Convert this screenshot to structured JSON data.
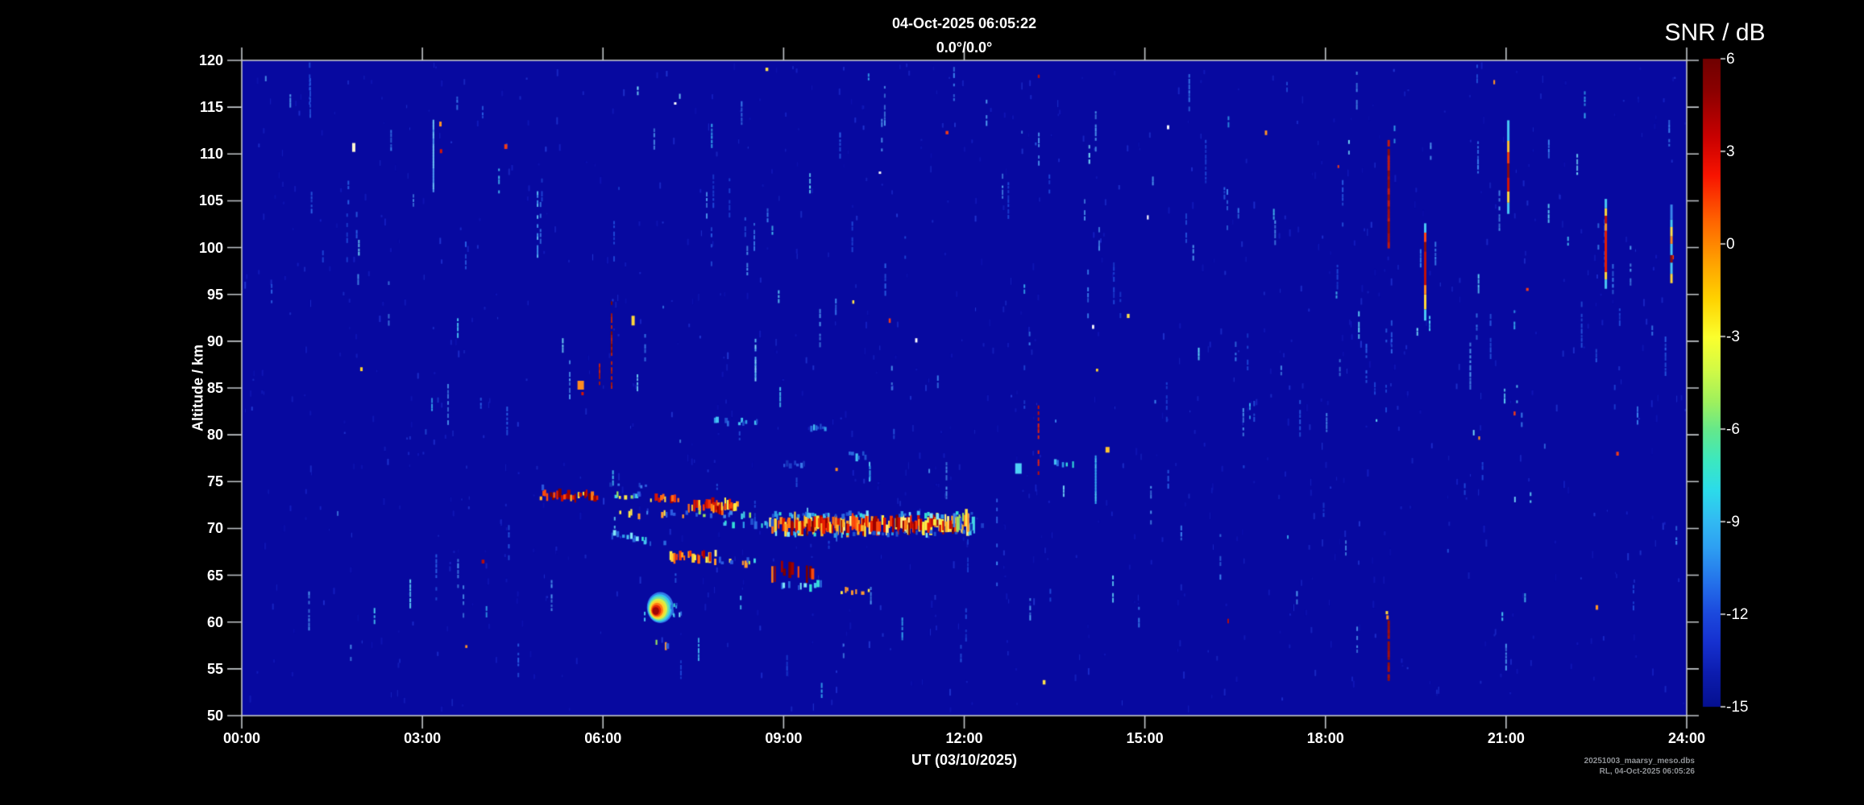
{
  "chart_data": {
    "type": "heatmap",
    "title": "04-Oct-2025 06:05:22",
    "subtitle": "0.0°/0.0°",
    "xlabel": "UT (03/10/2025)",
    "ylabel": "Altitude / km",
    "colorbar_title": "SNR / dB",
    "x_range_hours": [
      0,
      24
    ],
    "y_range_km": [
      50,
      120
    ],
    "colorbar_range_db": [
      -15,
      6
    ],
    "x_ticks": [
      {
        "value": 0,
        "label": "00:00"
      },
      {
        "value": 3,
        "label": "03:00"
      },
      {
        "value": 6,
        "label": "06:00"
      },
      {
        "value": 9,
        "label": "09:00"
      },
      {
        "value": 12,
        "label": "12:00"
      },
      {
        "value": 15,
        "label": "15:00"
      },
      {
        "value": 18,
        "label": "18:00"
      },
      {
        "value": 21,
        "label": "21:00"
      },
      {
        "value": 24,
        "label": "24:00"
      }
    ],
    "y_ticks": [
      {
        "value": 120,
        "label": "120"
      },
      {
        "value": 115,
        "label": "115"
      },
      {
        "value": 110,
        "label": "110"
      },
      {
        "value": 105,
        "label": "105"
      },
      {
        "value": 100,
        "label": "100"
      },
      {
        "value": 95,
        "label": "95"
      },
      {
        "value": 90,
        "label": "90"
      },
      {
        "value": 85,
        "label": "85"
      },
      {
        "value": 80,
        "label": "80"
      },
      {
        "value": 75,
        "label": "75"
      },
      {
        "value": 70,
        "label": "70"
      },
      {
        "value": 65,
        "label": "65"
      },
      {
        "value": 60,
        "label": "60"
      },
      {
        "value": 55,
        "label": "55"
      },
      {
        "value": 50,
        "label": "50"
      }
    ],
    "colorbar_ticks": [
      {
        "value": 6,
        "label": "6"
      },
      {
        "value": 3,
        "label": "3"
      },
      {
        "value": 0,
        "label": "0"
      },
      {
        "value": -3,
        "label": "-3"
      },
      {
        "value": -6,
        "label": "-6"
      },
      {
        "value": -9,
        "label": "-9"
      },
      {
        "value": -12,
        "label": "-12"
      },
      {
        "value": -15,
        "label": "-15"
      }
    ],
    "legend_position": "right",
    "grid": false,
    "colors": {
      "plot_background": "#0709a0",
      "frame": "#c3c7cb",
      "text": "#ffffff",
      "footer_text": "#8f9296",
      "colormap_stops": [
        [
          0,
          "#700000"
        ],
        [
          0.05,
          "#8c0000"
        ],
        [
          0.12,
          "#c80000"
        ],
        [
          0.18,
          "#f81400"
        ],
        [
          0.25,
          "#ff6400"
        ],
        [
          0.31,
          "#ff9e00"
        ],
        [
          0.37,
          "#ffd200"
        ],
        [
          0.43,
          "#fbff2e"
        ],
        [
          0.48,
          "#d2fa46"
        ],
        [
          0.53,
          "#9ef05e"
        ],
        [
          0.575,
          "#62e88e"
        ],
        [
          0.62,
          "#3ce8c0"
        ],
        [
          0.665,
          "#2cdcea"
        ],
        [
          0.71,
          "#32bcf2"
        ],
        [
          0.755,
          "#2e9ff2"
        ],
        [
          0.81,
          "#2470ea"
        ],
        [
          0.855,
          "#1c4ade"
        ],
        [
          0.9,
          "#1631d0"
        ],
        [
          0.95,
          "#0c1cae"
        ],
        [
          1,
          "#051090"
        ]
      ]
    },
    "palettes": {
      "hot1": [
        "#ffef4a",
        "#ffd23a",
        "#ff9d26",
        "#ff6a14",
        "#f93608",
        "#d81600",
        "#aa0000",
        "#ffef80"
      ],
      "hot2": [
        "#e81e00",
        "#c40b00",
        "#9c0000",
        "#ff7a16",
        "#ffb428",
        "#ffe83e",
        "#7a0000",
        "#f94a0c"
      ],
      "mixc": [
        "#ffe84a",
        "#9ae060",
        "#44d4e8",
        "#3f86ec",
        "#2a5ae0",
        "#ff9a30"
      ],
      "cy": [
        "#2f9ae8",
        "#45c2f2",
        "#7fe6fa",
        "#2a6ae0",
        "#1f50d0",
        "#35e0d8"
      ],
      "bl": [
        "#1d3cc8",
        "#2a56dc",
        "#3a78e8",
        "#1530b8"
      ]
    },
    "noise": {
      "seed": 7,
      "faint": {
        "n": 950,
        "colors": [
          "#1016b4",
          "#1520c0",
          "#1c2cca",
          "#2238d2"
        ]
      },
      "medium": {
        "n": 165,
        "colors": [
          "#1e48d8",
          "#2a62e6",
          "#3c86f0",
          "#4f9cf0"
        ]
      },
      "bright": {
        "n": 55,
        "colors": [
          "#49c8f4",
          "#7ae4fb",
          "#35a8ee",
          "#62d8f8"
        ]
      },
      "hot": {
        "n": 26,
        "colors": [
          "#ffffff",
          "#ffe24a",
          "#ff9326",
          "#f23c16",
          "#b40d0d",
          "#ffd22e"
        ]
      }
    },
    "features": [
      {
        "kind": "band",
        "t0": 4.75,
        "t1": 5.1,
        "alt": 74.5,
        "h": 0.45,
        "pal": "bl",
        "d": 0.35
      },
      {
        "kind": "band",
        "t0": 4.95,
        "t1": 5.88,
        "alt": 73.5,
        "h": 0.7,
        "pal": "hot2",
        "d": 0.9
      },
      {
        "kind": "band",
        "t0": 6.08,
        "t1": 6.56,
        "alt": 73.5,
        "h": 0.55,
        "pal": "mixc",
        "d": 0.6
      },
      {
        "kind": "band",
        "t0": 6.75,
        "t1": 7.22,
        "alt": 73.2,
        "h": 0.6,
        "pal": "hot1",
        "d": 0.8
      },
      {
        "kind": "band",
        "t0": 7.42,
        "t1": 8.2,
        "alt": 72.3,
        "h": 1.0,
        "pal": "hot1",
        "d": 0.95
      },
      {
        "kind": "band",
        "t0": 7.78,
        "t1": 8.16,
        "alt": 72.3,
        "h": 0.8,
        "pal": "hot2",
        "d": 0.8
      },
      {
        "kind": "band",
        "t0": 6.2,
        "t1": 8.45,
        "alt": 71.5,
        "h": 0.5,
        "pal": "mixc",
        "d": 0.33
      },
      {
        "kind": "band",
        "t0": 8.75,
        "t1": 12.02,
        "alt": 70.35,
        "h": 1.25,
        "pal": "hot1",
        "d": 0.97
      },
      {
        "kind": "band",
        "t0": 9.0,
        "t1": 10.55,
        "alt": 70.35,
        "h": 1.1,
        "pal": "hot2",
        "d": 0.85
      },
      {
        "kind": "band",
        "t0": 10.85,
        "t1": 11.95,
        "alt": 70.35,
        "h": 1.1,
        "pal": "hot2",
        "d": 0.85
      },
      {
        "kind": "band",
        "t0": 7.95,
        "t1": 8.78,
        "alt": 70.5,
        "h": 0.6,
        "pal": "cy",
        "d": 0.55
      },
      {
        "kind": "band",
        "t0": 8.7,
        "t1": 12.1,
        "alt": 71.45,
        "h": 0.45,
        "pal": "cy",
        "d": 0.4
      },
      {
        "kind": "band",
        "t0": 8.7,
        "t1": 12.15,
        "alt": 69.45,
        "h": 0.45,
        "pal": "cy",
        "d": 0.35
      },
      {
        "kind": "band",
        "t0": 11.82,
        "t1": 12.12,
        "alt": 70.6,
        "h": 1.4,
        "pal": "mixc",
        "d": 0.9
      },
      {
        "kind": "band",
        "t0": 6.1,
        "t1": 7.12,
        "alt0": 69.4,
        "alt1": 68.1,
        "h": 0.55,
        "pal": "cy",
        "d": 0.5
      },
      {
        "kind": "band",
        "t0": 7.1,
        "t1": 7.85,
        "alt": 67.0,
        "h": 0.8,
        "pal": "hot1",
        "d": 0.75
      },
      {
        "kind": "band",
        "t0": 7.85,
        "t1": 8.5,
        "alt": 66.4,
        "h": 0.55,
        "pal": "mixc",
        "d": 0.5
      },
      {
        "kind": "band",
        "t0": 8.8,
        "t1": 9.65,
        "alt": 65.6,
        "h": 1.3,
        "pal": "hot2",
        "d": 0.5
      },
      {
        "kind": "band",
        "t0": 8.8,
        "t1": 9.65,
        "alt": 63.9,
        "h": 0.6,
        "pal": "cy",
        "d": 0.4
      },
      {
        "kind": "band",
        "t0": 9.9,
        "t1": 10.5,
        "alt": 63.3,
        "h": 0.5,
        "pal": "mixc",
        "d": 0.5
      },
      {
        "kind": "band",
        "t0": 6.04,
        "t1": 6.7,
        "alt": 74.6,
        "h": 0.45,
        "pal": "bl",
        "d": 0.4
      },
      {
        "kind": "band",
        "t0": 7.76,
        "t1": 8.55,
        "alt": 81.4,
        "h": 0.5,
        "pal": "cy",
        "d": 0.45
      },
      {
        "kind": "band",
        "t0": 9.45,
        "t1": 9.66,
        "alt": 80.7,
        "h": 0.5,
        "pal": "cy",
        "d": 0.7
      },
      {
        "kind": "band",
        "t0": 13.5,
        "t1": 13.9,
        "alt": 77.0,
        "h": 0.5,
        "pal": "cy",
        "d": 0.55
      },
      {
        "kind": "band",
        "t0": 9.0,
        "t1": 9.32,
        "alt": 76.8,
        "h": 0.5,
        "pal": "bl",
        "d": 0.6
      },
      {
        "kind": "band",
        "t0": 10.08,
        "t1": 10.35,
        "alt": 77.8,
        "h": 0.6,
        "pal": "cy",
        "d": 0.7
      },
      {
        "kind": "band",
        "t0": 6.86,
        "t1": 7.1,
        "alt": 57.6,
        "h": 0.7,
        "pal": "mixc",
        "d": 0.55
      },
      {
        "kind": "band",
        "t0": 12.1,
        "t1": 12.4,
        "alt": 70.3,
        "h": 0.5,
        "pal": "bl",
        "d": 0.3
      },
      {
        "kind": "blob",
        "t0": 6.74,
        "t1": 7.16,
        "a0": 59.9,
        "a1": 63.2
      },
      {
        "kind": "v",
        "t": 6.68,
        "a0": 59.2,
        "a1": 61.3,
        "pal": [
          "#45c2f2",
          "#2f9ae8"
        ],
        "d": 0.6
      },
      {
        "kind": "v",
        "t": 6.13,
        "a0": 85.0,
        "a1": 94.0,
        "pal": [
          "#9c1616",
          "#b32014",
          "#7a0c0c"
        ],
        "d": 0.6
      },
      {
        "kind": "v",
        "t": 5.93,
        "a0": 85.4,
        "a1": 87.4,
        "pal": [
          "#9c1616",
          "#c22014"
        ],
        "d": 0.8
      },
      {
        "kind": "v",
        "t": 8.52,
        "a0": 85.8,
        "a1": 90.2,
        "pal": [
          "#57b6f2",
          "#7fd8f8"
        ],
        "d": 0.9
      },
      {
        "kind": "v",
        "t": 3.17,
        "a0": 106.0,
        "a1": 113.5,
        "pal": [
          "#4f9cf0",
          "#6cc4f6"
        ],
        "d": 0.85
      },
      {
        "kind": "v",
        "t": 4.9,
        "a0": 99.0,
        "a1": 106.0,
        "pal": [
          "#3a86ea",
          "#57b6f2"
        ],
        "d": 0.5
      },
      {
        "kind": "v",
        "t": 19.03,
        "a0": 100.0,
        "a1": 111.2,
        "pal": [
          "#a31111",
          "#8c0d0d",
          "#c01c10"
        ],
        "d": 0.97,
        "w": 3
      },
      {
        "kind": "v",
        "t": 19.03,
        "a0": 53.8,
        "a1": 60.0,
        "pal": [
          "#a31111",
          "#911010"
        ],
        "d": 0.93,
        "w": 3
      },
      {
        "kind": "spot",
        "t": 19.03,
        "alt": 60.5,
        "c": "#ff9326",
        "w": 3,
        "h": 5
      },
      {
        "kind": "spot",
        "t": 19.02,
        "alt": 61.0,
        "c": "#ffd83a",
        "w": 3,
        "h": 4
      },
      {
        "kind": "v",
        "t": 19.65,
        "segs": [
          [
            92.2,
            93.4,
            "#49c8f4"
          ],
          [
            93.4,
            95.0,
            "#ffd83a"
          ],
          [
            95.0,
            96.0,
            "#ff8c1e"
          ],
          [
            96.0,
            99.6,
            "#c21208"
          ],
          [
            99.6,
            100.6,
            "#8c0d0d"
          ],
          [
            100.6,
            101.6,
            "#ff4612"
          ],
          [
            101.6,
            102.6,
            "#49c8f4"
          ]
        ]
      },
      {
        "kind": "v",
        "t": 21.03,
        "segs": [
          [
            103.6,
            104.8,
            "#49c8f4"
          ],
          [
            104.8,
            106.0,
            "#ffd83a"
          ],
          [
            106.0,
            107.5,
            "#d81600"
          ],
          [
            107.5,
            109.0,
            "#8c0d0d"
          ],
          [
            109.0,
            110.2,
            "#f23c08"
          ],
          [
            110.2,
            111.4,
            "#ffc430"
          ],
          [
            111.4,
            113.6,
            "#49c8f4"
          ]
        ]
      },
      {
        "kind": "v",
        "t": 22.65,
        "segs": [
          [
            95.6,
            96.6,
            "#49c8f4"
          ],
          [
            96.6,
            97.4,
            "#ffd83a"
          ],
          [
            97.4,
            101.8,
            "#e81e00"
          ],
          [
            101.8,
            102.6,
            "#ff9326"
          ],
          [
            102.6,
            103.4,
            "#c21208"
          ],
          [
            103.4,
            104.2,
            "#ffd83a"
          ],
          [
            104.2,
            105.2,
            "#49c8f4"
          ]
        ]
      },
      {
        "kind": "v",
        "t": 23.74,
        "segs": [
          [
            96.2,
            97.2,
            "#ffd83a"
          ],
          [
            97.2,
            98.4,
            "#49c8f4"
          ],
          [
            98.4,
            99.2,
            "#8c0d0d"
          ],
          [
            99.2,
            100.4,
            "#49c8f4"
          ],
          [
            100.4,
            101.2,
            "#ff8c1e"
          ],
          [
            101.2,
            102.2,
            "#ffe24a"
          ],
          [
            102.2,
            103.0,
            "#49c8f4"
          ],
          [
            103.0,
            104.6,
            "#3a86ea"
          ]
        ]
      },
      {
        "kind": "v",
        "t": 13.22,
        "a0": 75.8,
        "a1": 83.4,
        "pal": [
          "#e22512",
          "#c01208"
        ],
        "d": 0.45
      },
      {
        "kind": "v",
        "t": 14.17,
        "a0": 72.7,
        "a1": 77.7,
        "pal": [
          "#49c8f4",
          "#35a8ee"
        ],
        "d": 0.95
      },
      {
        "kind": "v",
        "t": 12.53,
        "a0": 63.6,
        "a1": 74.0,
        "pal": [
          "#2a56dc",
          "#3c86f0"
        ],
        "d": 0.35
      },
      {
        "kind": "spot",
        "t": 1.86,
        "alt": 110.7,
        "c": "#fff6d0",
        "w": 4,
        "h": 11
      },
      {
        "kind": "spot",
        "t": 3.3,
        "alt": 113.2,
        "c": "#ff9326",
        "w": 3,
        "h": 6
      },
      {
        "kind": "spot",
        "t": 3.31,
        "alt": 110.3,
        "c": "#d81600",
        "w": 3,
        "h": 5
      },
      {
        "kind": "spot",
        "t": 5.63,
        "alt": 85.3,
        "c": "#ff8c1e",
        "w": 8,
        "h": 11
      },
      {
        "kind": "spot",
        "t": 5.66,
        "alt": 84.4,
        "c": "#d81600",
        "w": 3,
        "h": 4
      },
      {
        "kind": "spot",
        "t": 6.5,
        "alt": 92.2,
        "c": "#ffd83a",
        "w": 4,
        "h": 12
      },
      {
        "kind": "spot",
        "t": 12.9,
        "alt": 76.4,
        "c": "#4fd0f6",
        "w": 8,
        "h": 13
      },
      {
        "kind": "spot",
        "t": 14.38,
        "alt": 78.4,
        "c": "#ffc430",
        "w": 5,
        "h": 7
      },
      {
        "kind": "spot",
        "t": 9.88,
        "alt": 76.3,
        "c": "#ff8c1e",
        "w": 3,
        "h": 4
      },
      {
        "kind": "spot",
        "t": 7.2,
        "alt": 115.4,
        "c": "#ffffff",
        "w": 3,
        "h": 3
      },
      {
        "kind": "spot",
        "t": 10.6,
        "alt": 108.0,
        "c": "#f5f5f5",
        "w": 3,
        "h": 3
      }
    ]
  },
  "footer_lines": [
    "20251003_maarsy_meso.dbs",
    "RL, 04-Oct-2025 06:05:26"
  ]
}
